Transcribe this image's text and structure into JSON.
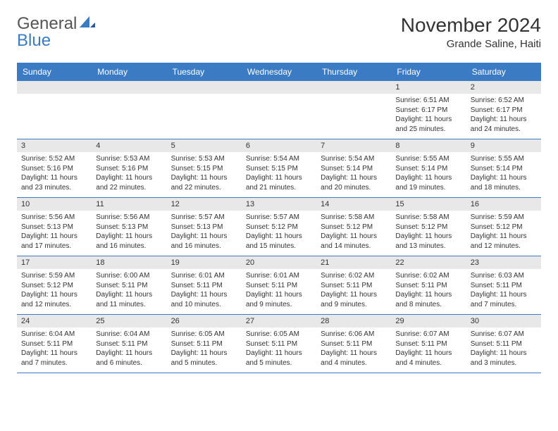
{
  "logo": {
    "word1": "General",
    "word2": "Blue",
    "word1_color": "#555555",
    "word2_color": "#3b7bc4"
  },
  "title": "November 2024",
  "location": "Grande Saline, Haiti",
  "colors": {
    "header_bg": "#3b7bc4",
    "header_text": "#ffffff",
    "date_strip_bg": "#e8e8e8",
    "text": "#333333",
    "week_border": "#3b7bc4",
    "background": "#ffffff"
  },
  "fonts": {
    "title_size": 28,
    "location_size": 15,
    "day_header_size": 12,
    "date_size": 11,
    "body_size": 10
  },
  "layout": {
    "columns": 7,
    "rows": 5
  },
  "days_of_week": [
    "Sunday",
    "Monday",
    "Tuesday",
    "Wednesday",
    "Thursday",
    "Friday",
    "Saturday"
  ],
  "weeks": [
    [
      {
        "empty": true
      },
      {
        "empty": true
      },
      {
        "empty": true
      },
      {
        "empty": true
      },
      {
        "empty": true
      },
      {
        "date": "1",
        "sunrise": "Sunrise: 6:51 AM",
        "sunset": "Sunset: 6:17 PM",
        "daylight": "Daylight: 11 hours and 25 minutes."
      },
      {
        "date": "2",
        "sunrise": "Sunrise: 6:52 AM",
        "sunset": "Sunset: 6:17 PM",
        "daylight": "Daylight: 11 hours and 24 minutes."
      }
    ],
    [
      {
        "date": "3",
        "sunrise": "Sunrise: 5:52 AM",
        "sunset": "Sunset: 5:16 PM",
        "daylight": "Daylight: 11 hours and 23 minutes."
      },
      {
        "date": "4",
        "sunrise": "Sunrise: 5:53 AM",
        "sunset": "Sunset: 5:16 PM",
        "daylight": "Daylight: 11 hours and 22 minutes."
      },
      {
        "date": "5",
        "sunrise": "Sunrise: 5:53 AM",
        "sunset": "Sunset: 5:15 PM",
        "daylight": "Daylight: 11 hours and 22 minutes."
      },
      {
        "date": "6",
        "sunrise": "Sunrise: 5:54 AM",
        "sunset": "Sunset: 5:15 PM",
        "daylight": "Daylight: 11 hours and 21 minutes."
      },
      {
        "date": "7",
        "sunrise": "Sunrise: 5:54 AM",
        "sunset": "Sunset: 5:14 PM",
        "daylight": "Daylight: 11 hours and 20 minutes."
      },
      {
        "date": "8",
        "sunrise": "Sunrise: 5:55 AM",
        "sunset": "Sunset: 5:14 PM",
        "daylight": "Daylight: 11 hours and 19 minutes."
      },
      {
        "date": "9",
        "sunrise": "Sunrise: 5:55 AM",
        "sunset": "Sunset: 5:14 PM",
        "daylight": "Daylight: 11 hours and 18 minutes."
      }
    ],
    [
      {
        "date": "10",
        "sunrise": "Sunrise: 5:56 AM",
        "sunset": "Sunset: 5:13 PM",
        "daylight": "Daylight: 11 hours and 17 minutes."
      },
      {
        "date": "11",
        "sunrise": "Sunrise: 5:56 AM",
        "sunset": "Sunset: 5:13 PM",
        "daylight": "Daylight: 11 hours and 16 minutes."
      },
      {
        "date": "12",
        "sunrise": "Sunrise: 5:57 AM",
        "sunset": "Sunset: 5:13 PM",
        "daylight": "Daylight: 11 hours and 16 minutes."
      },
      {
        "date": "13",
        "sunrise": "Sunrise: 5:57 AM",
        "sunset": "Sunset: 5:12 PM",
        "daylight": "Daylight: 11 hours and 15 minutes."
      },
      {
        "date": "14",
        "sunrise": "Sunrise: 5:58 AM",
        "sunset": "Sunset: 5:12 PM",
        "daylight": "Daylight: 11 hours and 14 minutes."
      },
      {
        "date": "15",
        "sunrise": "Sunrise: 5:58 AM",
        "sunset": "Sunset: 5:12 PM",
        "daylight": "Daylight: 11 hours and 13 minutes."
      },
      {
        "date": "16",
        "sunrise": "Sunrise: 5:59 AM",
        "sunset": "Sunset: 5:12 PM",
        "daylight": "Daylight: 11 hours and 12 minutes."
      }
    ],
    [
      {
        "date": "17",
        "sunrise": "Sunrise: 5:59 AM",
        "sunset": "Sunset: 5:12 PM",
        "daylight": "Daylight: 11 hours and 12 minutes."
      },
      {
        "date": "18",
        "sunrise": "Sunrise: 6:00 AM",
        "sunset": "Sunset: 5:11 PM",
        "daylight": "Daylight: 11 hours and 11 minutes."
      },
      {
        "date": "19",
        "sunrise": "Sunrise: 6:01 AM",
        "sunset": "Sunset: 5:11 PM",
        "daylight": "Daylight: 11 hours and 10 minutes."
      },
      {
        "date": "20",
        "sunrise": "Sunrise: 6:01 AM",
        "sunset": "Sunset: 5:11 PM",
        "daylight": "Daylight: 11 hours and 9 minutes."
      },
      {
        "date": "21",
        "sunrise": "Sunrise: 6:02 AM",
        "sunset": "Sunset: 5:11 PM",
        "daylight": "Daylight: 11 hours and 9 minutes."
      },
      {
        "date": "22",
        "sunrise": "Sunrise: 6:02 AM",
        "sunset": "Sunset: 5:11 PM",
        "daylight": "Daylight: 11 hours and 8 minutes."
      },
      {
        "date": "23",
        "sunrise": "Sunrise: 6:03 AM",
        "sunset": "Sunset: 5:11 PM",
        "daylight": "Daylight: 11 hours and 7 minutes."
      }
    ],
    [
      {
        "date": "24",
        "sunrise": "Sunrise: 6:04 AM",
        "sunset": "Sunset: 5:11 PM",
        "daylight": "Daylight: 11 hours and 7 minutes."
      },
      {
        "date": "25",
        "sunrise": "Sunrise: 6:04 AM",
        "sunset": "Sunset: 5:11 PM",
        "daylight": "Daylight: 11 hours and 6 minutes."
      },
      {
        "date": "26",
        "sunrise": "Sunrise: 6:05 AM",
        "sunset": "Sunset: 5:11 PM",
        "daylight": "Daylight: 11 hours and 5 minutes."
      },
      {
        "date": "27",
        "sunrise": "Sunrise: 6:05 AM",
        "sunset": "Sunset: 5:11 PM",
        "daylight": "Daylight: 11 hours and 5 minutes."
      },
      {
        "date": "28",
        "sunrise": "Sunrise: 6:06 AM",
        "sunset": "Sunset: 5:11 PM",
        "daylight": "Daylight: 11 hours and 4 minutes."
      },
      {
        "date": "29",
        "sunrise": "Sunrise: 6:07 AM",
        "sunset": "Sunset: 5:11 PM",
        "daylight": "Daylight: 11 hours and 4 minutes."
      },
      {
        "date": "30",
        "sunrise": "Sunrise: 6:07 AM",
        "sunset": "Sunset: 5:11 PM",
        "daylight": "Daylight: 11 hours and 3 minutes."
      }
    ]
  ]
}
